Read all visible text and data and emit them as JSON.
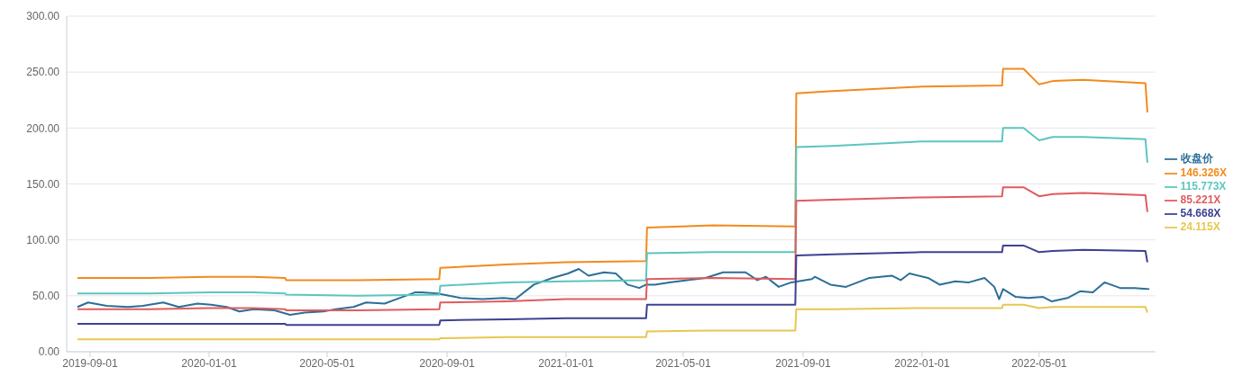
{
  "chart_data": {
    "type": "line",
    "xlim": [
      "2019-08-08",
      "2022-08-28"
    ],
    "xticks": [
      "2019-09-01",
      "2020-01-01",
      "2020-05-01",
      "2020-09-01",
      "2021-01-01",
      "2021-05-01",
      "2021-09-01",
      "2022-01-01",
      "2022-05-01"
    ],
    "ylim": [
      0,
      300
    ],
    "yticks": [
      {
        "value": 0,
        "label": "0.00"
      },
      {
        "value": 50,
        "label": "50.00"
      },
      {
        "value": 100,
        "label": "100.00"
      },
      {
        "value": 150,
        "label": "150.00"
      },
      {
        "value": 200,
        "label": "200.00"
      },
      {
        "value": 250,
        "label": "250.00"
      },
      {
        "value": 300,
        "label": "300.00"
      }
    ],
    "grid": "y",
    "legend": "right",
    "marker": "none",
    "line_style": "solid",
    "series": [
      {
        "name": "收盘价",
        "color": "#2b6f98",
        "x": [
          "2019-08-19",
          "2019-08-30",
          "2019-09-18",
          "2019-10-10",
          "2019-10-25",
          "2019-11-15",
          "2019-12-01",
          "2019-12-20",
          "2020-01-03",
          "2020-01-19",
          "2020-02-01",
          "2020-02-16",
          "2020-03-08",
          "2020-03-24",
          "2020-04-08",
          "2020-04-27",
          "2020-05-10",
          "2020-05-28",
          "2020-06-10",
          "2020-06-29",
          "2020-07-11",
          "2020-07-30",
          "2020-08-06",
          "2020-08-22",
          "2020-09-15",
          "2020-10-07",
          "2020-10-29",
          "2020-11-10",
          "2020-11-29",
          "2020-12-18",
          "2021-01-03",
          "2021-01-14",
          "2021-01-24",
          "2021-02-09",
          "2021-02-21",
          "2021-03-05",
          "2021-03-17",
          "2021-03-24",
          "2021-04-02",
          "2021-04-17",
          "2021-05-05",
          "2021-05-24",
          "2021-06-11",
          "2021-07-04",
          "2021-07-16",
          "2021-07-25",
          "2021-08-07",
          "2021-08-20",
          "2021-09-10",
          "2021-09-13",
          "2021-09-29",
          "2021-10-15",
          "2021-11-08",
          "2021-12-01",
          "2021-12-10",
          "2021-12-19",
          "2022-01-07",
          "2022-01-19",
          "2022-02-04",
          "2022-02-18",
          "2022-03-06",
          "2022-03-16",
          "2022-03-21",
          "2022-03-25",
          "2022-04-07",
          "2022-04-20",
          "2022-05-05",
          "2022-05-14",
          "2022-05-30",
          "2022-06-12",
          "2022-06-25",
          "2022-07-07",
          "2022-07-23",
          "2022-08-07",
          "2022-08-22"
        ],
        "values": [
          40,
          44,
          41,
          40,
          41,
          44,
          40,
          43,
          42,
          40,
          36,
          38,
          37,
          33,
          35,
          36,
          38,
          40,
          44,
          43,
          47,
          53,
          53,
          52,
          48,
          47,
          48,
          47,
          60,
          66,
          70,
          74,
          68,
          71,
          70,
          60,
          57,
          60,
          60,
          62,
          64,
          66,
          71,
          71,
          64,
          67,
          58,
          62,
          65,
          67,
          60,
          58,
          66,
          68,
          64,
          70,
          66,
          60,
          63,
          62,
          66,
          58,
          47,
          56,
          49,
          48,
          49,
          45,
          48,
          54,
          53,
          62,
          57,
          57,
          56
        ]
      },
      {
        "name": "146.326X",
        "color": "#f28b1c",
        "values": [
          66,
          66,
          67,
          67,
          66,
          64,
          64,
          65,
          75,
          78,
          80,
          81,
          111,
          113,
          112,
          231,
          233,
          237,
          238,
          253,
          253,
          239,
          242,
          243,
          240,
          214
        ]
      },
      {
        "name": "115.773X",
        "color": "#5cc5bf",
        "values": [
          52,
          52,
          53,
          53,
          52,
          51,
          50,
          51,
          59,
          62,
          63,
          64,
          88,
          89,
          89,
          183,
          184,
          188,
          188,
          200,
          200,
          189,
          192,
          192,
          190,
          169
        ]
      },
      {
        "name": "85.221X",
        "color": "#e05b5e",
        "values": [
          38,
          38,
          39,
          39,
          38,
          37,
          37,
          38,
          44,
          45,
          47,
          47,
          65,
          66,
          65,
          135,
          136,
          138,
          139,
          147,
          147,
          139,
          141,
          142,
          140,
          125
        ]
      },
      {
        "name": "54.668X",
        "color": "#3d4190",
        "values": [
          25,
          25,
          25,
          25,
          25,
          24,
          24,
          24,
          28,
          29,
          30,
          30,
          42,
          42,
          42,
          86,
          87,
          89,
          89,
          95,
          95,
          89,
          90,
          91,
          90,
          80
        ]
      },
      {
        "name": "24.115X",
        "color": "#e8c650",
        "values": [
          11,
          11,
          11,
          11,
          11,
          11,
          11,
          11,
          12,
          13,
          13,
          13,
          18,
          19,
          19,
          38,
          38,
          39,
          39,
          42,
          42,
          39,
          40,
          40,
          40,
          35
        ]
      }
    ],
    "x": [
      "2019-08-19",
      "2019-11-01",
      "2020-01-01",
      "2020-02-15",
      "2020-03-19",
      "2020-03-20",
      "2020-06-01",
      "2020-08-24",
      "2020-08-25",
      "2020-11-01",
      "2021-01-01",
      "2021-03-24",
      "2021-03-25",
      "2021-06-01",
      "2021-08-24",
      "2021-08-25",
      "2021-10-01",
      "2022-01-01",
      "2022-03-24",
      "2022-03-25",
      "2022-04-15",
      "2022-05-01",
      "2022-05-15",
      "2022-06-15",
      "2022-08-18",
      "2022-08-20"
    ]
  }
}
